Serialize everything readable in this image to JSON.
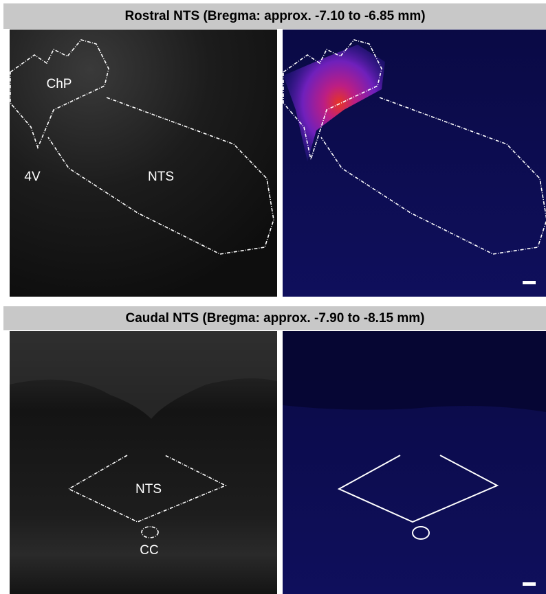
{
  "sections": [
    {
      "title": "Rostral NTS (Bregma: approx. -7.10 to -6.85 mm)",
      "labels": [
        "ChP",
        "4V",
        "NTS"
      ]
    },
    {
      "title": "Caudal NTS (Bregma: approx. -7.90 to -8.15 mm)",
      "labels": [
        "NTS",
        "CC"
      ]
    }
  ]
}
